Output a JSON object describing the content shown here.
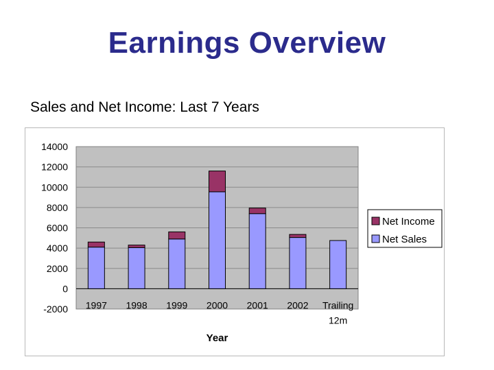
{
  "slide": {
    "title": "Earnings Overview",
    "subtitle": "Sales and Net Income: Last 7 Years"
  },
  "chart_data": {
    "type": "bar",
    "stacked": true,
    "categories": [
      "1997",
      "1998",
      "1999",
      "2000",
      "2001",
      "2002",
      "Trailing 12m"
    ],
    "series": [
      {
        "name": "Net Sales",
        "values": [
          4100,
          4050,
          4900,
          9550,
          7400,
          5050,
          4750
        ],
        "color": "#9999ff"
      },
      {
        "name": "Net Income",
        "values": [
          500,
          250,
          700,
          2050,
          550,
          300,
          0
        ],
        "color": "#993366"
      }
    ],
    "title": "",
    "xlabel": "Year",
    "ylabel": "",
    "ylim": [
      -2000,
      14000
    ],
    "yticks": [
      -2000,
      0,
      2000,
      4000,
      6000,
      8000,
      10000,
      12000,
      14000
    ],
    "grid": true,
    "legend_position": "right",
    "plot_background": "#c0c0c0"
  }
}
